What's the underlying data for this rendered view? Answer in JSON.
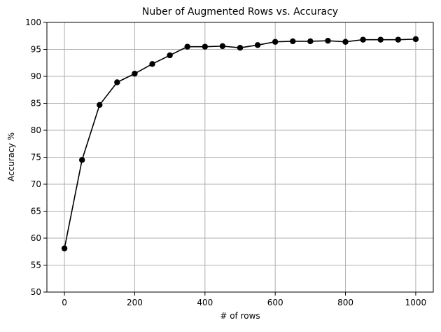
{
  "chart_data": {
    "type": "line",
    "title": "Nuber of Augmented Rows vs. Accuracy",
    "xlabel": "# of rows",
    "ylabel": "Accuracy %",
    "xlim": [
      -50,
      1050
    ],
    "ylim": [
      50,
      100
    ],
    "grid": true,
    "x_ticks": [
      0,
      200,
      400,
      600,
      800,
      1000
    ],
    "y_ticks": [
      50,
      55,
      60,
      65,
      70,
      75,
      80,
      85,
      90,
      95,
      100
    ],
    "series": [
      {
        "color": "#000000",
        "marker": "circle",
        "x": [
          0,
          50,
          100,
          150,
          200,
          250,
          300,
          350,
          400,
          450,
          500,
          550,
          600,
          650,
          700,
          750,
          800,
          850,
          900,
          950,
          1000
        ],
        "y": [
          58.1,
          74.5,
          84.7,
          88.9,
          90.5,
          92.3,
          93.9,
          95.5,
          95.5,
          95.6,
          95.3,
          95.8,
          96.4,
          96.5,
          96.5,
          96.6,
          96.4,
          96.8,
          96.8,
          96.8,
          96.9
        ]
      }
    ]
  }
}
